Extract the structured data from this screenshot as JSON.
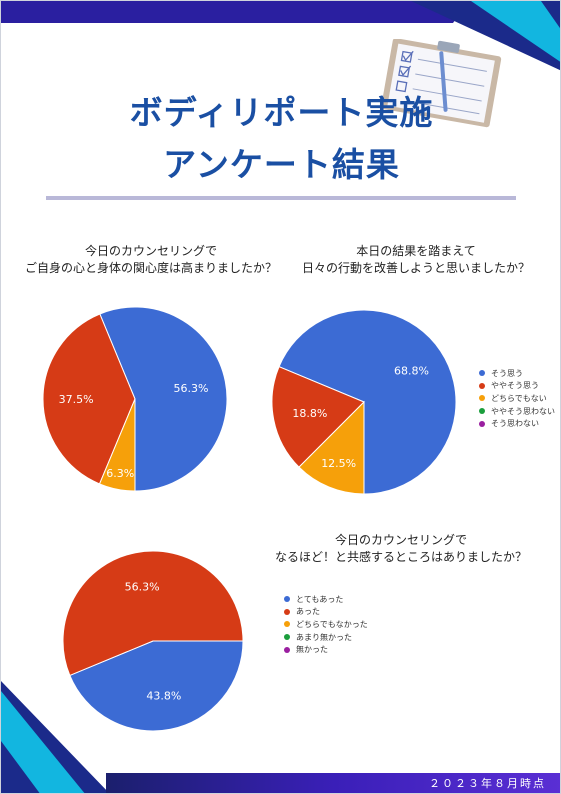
{
  "header": {
    "title_line1": "ボディリポート実施",
    "title_line2": "アンケート結果"
  },
  "footer": {
    "date_text": "２０２３年８月時点"
  },
  "colors": {
    "blue": "#3c6bd4",
    "red": "#d63b16",
    "orange": "#f6a00a",
    "green": "#1b9e3c",
    "purple": "#9a1fa0",
    "accent_navy": "#1b2a8a",
    "accent_cyan": "#12b6e0"
  },
  "chart_data": [
    {
      "type": "pie",
      "title_line1": "今日のカウンセリングで",
      "title_line2": "ご自身の心と身体の関心度は高まりましたか？",
      "slices": [
        {
          "label": "そう思う",
          "value": 56.3,
          "display": "56.3%",
          "color": "#3c6bd4"
        },
        {
          "label": "ややそう思う",
          "value": 37.5,
          "display": "37.5%",
          "color": "#d63b16"
        },
        {
          "label": "どちらでもない",
          "value": 6.3,
          "display": "6.3%",
          "color": "#f6a00a"
        }
      ],
      "legend": "none"
    },
    {
      "type": "pie",
      "title_line1": "本日の結果を踏まえて",
      "title_line2": "日々の行動を改善しようと思いましたか？",
      "slices": [
        {
          "label": "そう思う",
          "value": 68.8,
          "display": "68.8%",
          "color": "#3c6bd4"
        },
        {
          "label": "ややそう思う",
          "value": 18.8,
          "display": "18.8%",
          "color": "#d63b16"
        },
        {
          "label": "どちらでもない",
          "value": 12.5,
          "display": "12.5%",
          "color": "#f6a00a"
        },
        {
          "label": "ややそう思わない",
          "value": 0,
          "display": "",
          "color": "#1b9e3c"
        },
        {
          "label": "そう思わない",
          "value": 0,
          "display": "",
          "color": "#9a1fa0"
        }
      ],
      "legend": "right"
    },
    {
      "type": "pie",
      "title_line1": "今日のカウンセリングで",
      "title_line2": "なるほど！と共感するところはありましたか？",
      "slices": [
        {
          "label": "とてもあった",
          "value": 43.8,
          "display": "43.8%",
          "color": "#3c6bd4"
        },
        {
          "label": "あった",
          "value": 56.3,
          "display": "56.3%",
          "color": "#d63b16"
        },
        {
          "label": "どちらでもなかった",
          "value": 0,
          "display": "",
          "color": "#f6a00a"
        },
        {
          "label": "あまり無かった",
          "value": 0,
          "display": "",
          "color": "#1b9e3c"
        },
        {
          "label": "無かった",
          "value": 0,
          "display": "",
          "color": "#9a1fa0"
        }
      ],
      "legend": "right"
    }
  ]
}
